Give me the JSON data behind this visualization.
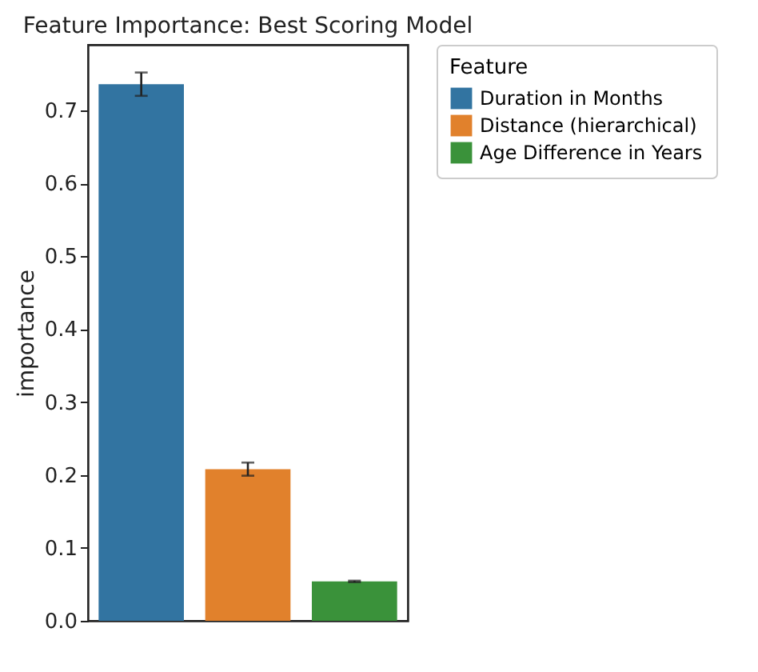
{
  "chart_data": {
    "type": "bar",
    "title": "Feature Importance: Best Scoring Model",
    "ylabel": "importance",
    "legend_title": "Feature",
    "categories": [
      null
    ],
    "series": [
      {
        "name": "Duration in Months",
        "color": "#3274a1",
        "values": [
          0.736
        ],
        "errors": [
          0.016
        ]
      },
      {
        "name": "Distance (hierarchical)",
        "color": "#e1812c",
        "values": [
          0.208
        ],
        "errors": [
          0.009
        ]
      },
      {
        "name": "Age Difference in Years",
        "color": "#3a923a",
        "values": [
          0.054
        ],
        "errors": [
          0.001
        ]
      }
    ],
    "ylim": [
      0,
      0.79
    ],
    "yticks": [
      {
        "value": 0,
        "label": "0.0"
      },
      0.1,
      0.2,
      0.3,
      0.4,
      0.5,
      0.6,
      0.7
    ],
    "grid": false,
    "legend": "top right"
  }
}
